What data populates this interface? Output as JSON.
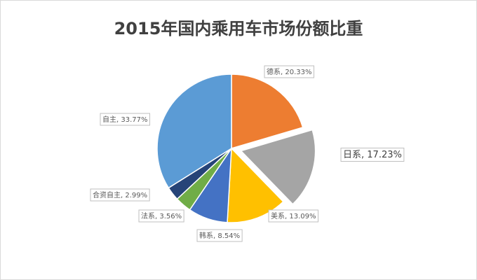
{
  "chart_data": {
    "type": "pie",
    "title": "2015年国内乘用车市场份额比重",
    "categories": [
      "德系",
      "日系",
      "美系",
      "韩系",
      "法系",
      "合资自主",
      "自主"
    ],
    "values": [
      20.33,
      17.23,
      13.09,
      8.54,
      3.56,
      2.99,
      33.77
    ],
    "value_labels": [
      "20.33%",
      "17.23%",
      "13.09%",
      "8.54%",
      "3.56%",
      "2.99%",
      "33.77%"
    ],
    "colors": [
      "#ed7d31",
      "#a5a5a5",
      "#ffc000",
      "#4472c4",
      "#70ad47",
      "#264478",
      "#5b9bd5"
    ],
    "exploded": [
      1
    ]
  }
}
